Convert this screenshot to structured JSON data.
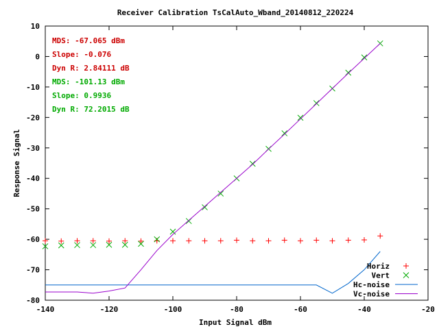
{
  "chart_data": {
    "type": "line",
    "title": "Receiver Calibration TsCalAuto_Wband_20140812_220224",
    "xlabel": "Input Signal dBm",
    "ylabel": "Response Signal",
    "xlim": [
      -140,
      -20
    ],
    "ylim": [
      -80,
      10
    ],
    "x_ticks": [
      -140,
      -120,
      -100,
      -80,
      -60,
      -40,
      -20
    ],
    "y_ticks": [
      10,
      0,
      -10,
      -20,
      -30,
      -40,
      -50,
      -60,
      -70,
      -80
    ],
    "grid": false,
    "legend_position": "bottom-right",
    "annotations": [
      {
        "text": "MDS: -67.065 dBm",
        "color": "#cc0000"
      },
      {
        "text": "Slope: -0.076",
        "color": "#cc0000"
      },
      {
        "text": "Dyn R: 2.84111 dB",
        "color": "#cc0000"
      },
      {
        "text": "MDS: -101.13 dBm",
        "color": "#00aa00"
      },
      {
        "text": "Slope: 0.9936",
        "color": "#00aa00"
      },
      {
        "text": "Dyn R: 72.2015 dB",
        "color": "#00aa00"
      }
    ],
    "series": [
      {
        "name": "Horiz",
        "style": "points",
        "marker": "+",
        "color": "#ff0000",
        "x": [
          -140,
          -135,
          -130,
          -125,
          -120,
          -115,
          -110,
          -105,
          -100,
          -95,
          -90,
          -85,
          -80,
          -75,
          -70,
          -65,
          -60,
          -55,
          -50,
          -45,
          -40,
          -35
        ],
        "y": [
          -60.5,
          -60.6,
          -60.5,
          -60.5,
          -60.6,
          -60.5,
          -60.6,
          -60.5,
          -60.5,
          -60.5,
          -60.5,
          -60.5,
          -60.3,
          -60.5,
          -60.5,
          -60.3,
          -60.5,
          -60.3,
          -60.5,
          -60.3,
          -60.2,
          -58.9
        ]
      },
      {
        "name": "Vert",
        "style": "points",
        "marker": "x",
        "color": "#00aa00",
        "x": [
          -140,
          -135,
          -130,
          -125,
          -120,
          -115,
          -110,
          -105,
          -100,
          -95,
          -90,
          -85,
          -80,
          -75,
          -70,
          -65,
          -60,
          -55,
          -50,
          -45,
          -40,
          -35
        ],
        "y": [
          -62.3,
          -62,
          -61.9,
          -61.9,
          -61.8,
          -61.8,
          -61.5,
          -60,
          -57.5,
          -54,
          -49.5,
          -45,
          -40,
          -35.2,
          -30.3,
          -25.2,
          -20.1,
          -15.3,
          -10.5,
          -5.3,
          -0.3,
          4.3
        ]
      },
      {
        "name": "Hc-noise",
        "style": "line",
        "color": "#0066cc",
        "x": [
          -140,
          -55,
          -50,
          -45,
          -40,
          -35
        ],
        "y": [
          -75,
          -75,
          -77.7,
          -74.5,
          -70,
          -64
        ]
      },
      {
        "name": "Vc-noise",
        "style": "line",
        "color": "#9900cc",
        "x": [
          -140,
          -130,
          -125,
          -120,
          -115,
          -110,
          -105,
          -100,
          -95,
          -90,
          -85,
          -80,
          -75,
          -70,
          -65,
          -60,
          -55,
          -50,
          -45,
          -40,
          -35
        ],
        "y": [
          -77.3,
          -77.3,
          -77.7,
          -77,
          -76,
          -70,
          -63.7,
          -58.4,
          -53.8,
          -49.2,
          -44.6,
          -40,
          -35.4,
          -30.4,
          -25.5,
          -20.5,
          -15.5,
          -10.5,
          -5.5,
          -0.6,
          4.3
        ]
      }
    ]
  }
}
